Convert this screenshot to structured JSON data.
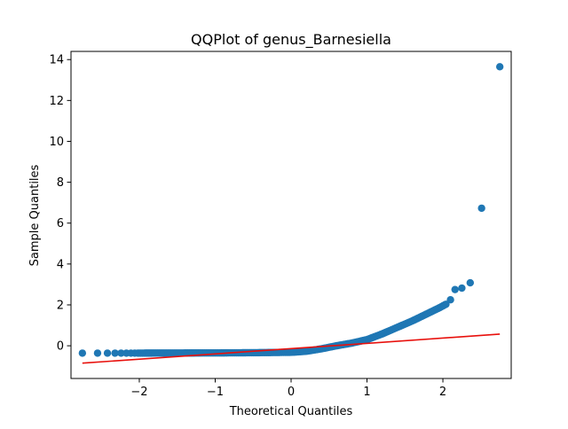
{
  "chart_data": {
    "type": "scatter",
    "title": "QQPlot of genus_Barnesiella",
    "xlabel": "Theoretical Quantiles",
    "ylabel": "Sample Quantiles",
    "xlim": [
      -2.9,
      2.9
    ],
    "ylim": [
      -1.6,
      14.4
    ],
    "x_ticks": [
      -2,
      -1,
      0,
      1,
      2
    ],
    "x_tick_labels": [
      "−2",
      "−1",
      "0",
      "1",
      "2"
    ],
    "y_ticks": [
      0,
      2,
      4,
      6,
      8,
      10,
      12,
      14
    ],
    "y_tick_labels": [
      "0",
      "2",
      "4",
      "6",
      "8",
      "10",
      "12",
      "14"
    ],
    "grid": false,
    "marker_color": "#1f77b4",
    "reference_line": {
      "x": [
        -2.75,
        2.75
      ],
      "y": [
        -0.85,
        0.57
      ],
      "color": "#e8100c"
    },
    "tail_points": [
      {
        "x": 2.1,
        "y": 2.25
      },
      {
        "x": 2.16,
        "y": 2.75
      },
      {
        "x": 2.25,
        "y": 2.82
      },
      {
        "x": 2.36,
        "y": 3.08
      },
      {
        "x": 2.51,
        "y": 6.73
      },
      {
        "x": 2.75,
        "y": 13.65
      }
    ]
  }
}
